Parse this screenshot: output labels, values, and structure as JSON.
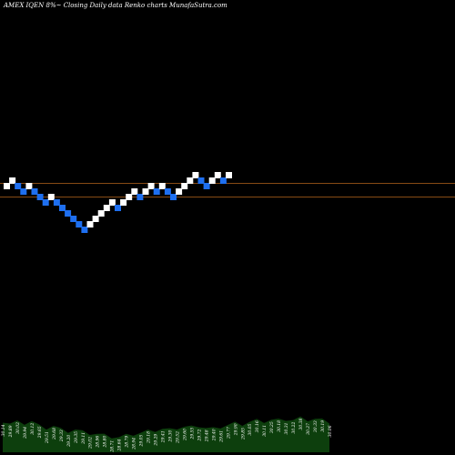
{
  "header": {
    "text": "AMEX  IQEN  8%~  Closing Daily data  Renko  charts MunafaSutra.com"
  },
  "colors": {
    "background": "#000000",
    "up_brick": "#ffffff",
    "down_brick": "#1e6ff0",
    "reference_line": "#b5651d",
    "volume_fill": "#0d3f0d",
    "text": "#ffffff"
  },
  "chart_data": {
    "type": "renko",
    "title": "",
    "xlabel": "",
    "ylabel": "",
    "grid": false,
    "legend": "none",
    "brick_steps": [
      0,
      1,
      -1,
      -1,
      1,
      -1,
      -1,
      -1,
      1,
      -1,
      -1,
      -1,
      -1,
      -1,
      -1,
      1,
      1,
      1,
      1,
      1,
      -1,
      1,
      1,
      1,
      -1,
      1,
      1,
      -1,
      1,
      -1,
      -1,
      1,
      1,
      1,
      1,
      -1,
      -1,
      1,
      1,
      -1,
      1
    ],
    "reference_levels_in_bricks": [
      0.5,
      -2
    ],
    "volume_labels": [
      "30.14",
      "29.89",
      "30.02",
      "29.94",
      "30.12",
      "29.65",
      "29.51",
      "29.68",
      "29.33",
      "29.20",
      "29.35",
      "29.11",
      "29.02",
      "28.96",
      "28.80",
      "28.71",
      "28.64",
      "28.79",
      "28.94",
      "29.05",
      "29.18",
      "29.29",
      "29.41",
      "29.30",
      "29.52",
      "29.60",
      "29.55",
      "29.72",
      "29.48",
      "29.40",
      "29.61",
      "29.77",
      "29.90",
      "29.85",
      "30.05",
      "30.16",
      "30.11",
      "30.25",
      "30.18",
      "30.31",
      "30.22",
      "30.38",
      "30.27",
      "30.33",
      "30.19",
      "30.06"
    ]
  }
}
